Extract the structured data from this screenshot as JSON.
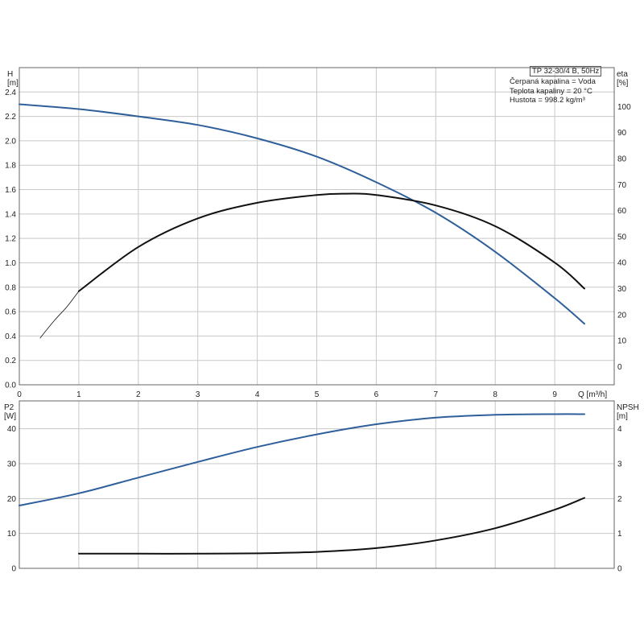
{
  "legend": {
    "model": "TP 32-30/4 B, 50Hz",
    "liquid": "Čerpaná kapalina = Voda",
    "temperature": "Teplota kapaliny = 20 °C",
    "density": "Hustota = 998.2 kg/m³"
  },
  "colors": {
    "head": "#2f5f9a",
    "black": "#111111",
    "grid": "#c8c8c8"
  },
  "chart_data": [
    {
      "type": "line",
      "xlabel": "Q [m³/h]",
      "ylabel": "H\n[m]",
      "ylabel2": "eta\n[%]",
      "xlim": [
        0,
        10
      ],
      "ylim": [
        0,
        2.6
      ],
      "ylim2": [
        -7,
        115
      ],
      "x_ticks": [
        "0",
        "1",
        "2",
        "3",
        "4",
        "5",
        "6",
        "7",
        "8",
        "9"
      ],
      "y_ticks": [
        "0.0",
        "0.2",
        "0.4",
        "0.6",
        "0.8",
        "1.0",
        "1.2",
        "1.4",
        "1.6",
        "1.8",
        "2.0",
        "2.2",
        "2.4"
      ],
      "y2_ticks": [
        "0",
        "10",
        "20",
        "30",
        "40",
        "50",
        "60",
        "70",
        "80",
        "90",
        "100"
      ],
      "grid": true,
      "series": [
        {
          "axis": "left",
          "x": [
            0,
            1,
            2,
            3,
            4,
            5,
            6,
            7,
            8,
            9,
            9.5
          ],
          "values": [
            2.3,
            2.26,
            2.2,
            2.13,
            2.02,
            1.87,
            1.66,
            1.41,
            1.09,
            0.71,
            0.5
          ]
        },
        {
          "axis": "right",
          "x": [
            1,
            2,
            3,
            4,
            5,
            5.5,
            6,
            7,
            8,
            9,
            9.5
          ],
          "values": [
            29,
            46,
            57,
            63,
            66,
            66.5,
            66,
            62,
            54,
            40,
            30
          ]
        },
        {
          "axis": "right",
          "thin": true,
          "x": [
            0.35,
            0.6,
            0.8,
            1
          ],
          "values": [
            11,
            18,
            23,
            29
          ]
        }
      ]
    },
    {
      "type": "line",
      "ylabel": "P2\n[W]",
      "ylabel2": "NPSH\n[m]",
      "xlim": [
        0,
        10
      ],
      "ylim": [
        0,
        48
      ],
      "ylim2": [
        0,
        4.8
      ],
      "y_ticks": [
        "0",
        "10",
        "20",
        "30",
        "40"
      ],
      "y2_ticks": [
        "0",
        "1",
        "2",
        "3",
        "4"
      ],
      "grid": true,
      "series": [
        {
          "axis": "left",
          "x": [
            0,
            1,
            2,
            3,
            4,
            5,
            6,
            7,
            8,
            9,
            9.5
          ],
          "values": [
            18.0,
            21.5,
            26.0,
            30.5,
            34.8,
            38.4,
            41.3,
            43.2,
            44.0,
            44.2,
            44.2
          ]
        },
        {
          "axis": "right",
          "x": [
            1,
            2,
            3,
            4,
            5,
            6,
            7,
            8,
            9,
            9.5
          ],
          "values": [
            0.42,
            0.42,
            0.42,
            0.43,
            0.47,
            0.58,
            0.8,
            1.15,
            1.68,
            2.02
          ]
        }
      ]
    }
  ]
}
